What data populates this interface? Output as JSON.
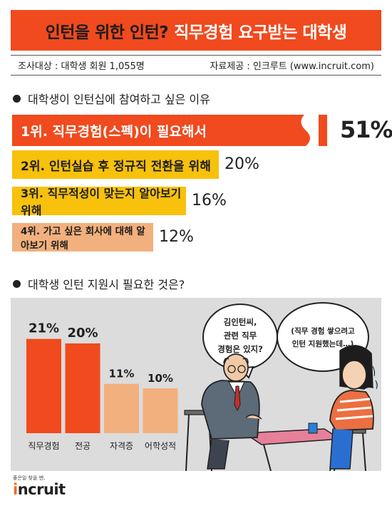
{
  "header": {
    "title_part1": "인턴을 위한 인턴?",
    "title_part2": "직무경험 요구받는 대학생",
    "survey_target": "조사대상 : 대학생 회원 1,055명",
    "source": "자료제공 : 인크루트 (www.incruit.com)"
  },
  "section1": {
    "heading": "대학생이 인턴십에 참여하고 싶은 이유"
  },
  "section2": {
    "heading": "대학생 인턴 지원시 필요한 것은?"
  },
  "chart_data": [
    {
      "type": "bar",
      "orientation": "horizontal",
      "categories": [
        "1위. 직무경험(스펙)이 필요해서",
        "2위. 인턴실습 후 정규직 전환을 위해",
        "3위. 직무적성이 맞는지 알아보기 위해",
        "4위. 가고 싶은 회사에 대해 알아보기 위해"
      ],
      "values": [
        51,
        20,
        16,
        12
      ],
      "value_labels": [
        "51%",
        "20%",
        "16%",
        "12%"
      ],
      "colors": [
        "#f04a1e",
        "#f7c10c",
        "#f7c10c",
        "#f2b07e"
      ],
      "axis_break_on_first_bar": true
    },
    {
      "type": "bar",
      "orientation": "vertical",
      "categories": [
        "직무경험",
        "전공",
        "자격증",
        "어학성적"
      ],
      "values": [
        21,
        20,
        11,
        10
      ],
      "value_labels": [
        "21%",
        "20%",
        "11%",
        "10%"
      ],
      "colors": [
        "#f04a1e",
        "#f04a1e",
        "#f2b07e",
        "#f2b07e"
      ]
    }
  ],
  "illustration": {
    "bubble1": [
      "김인턴씨,",
      "관련 직무",
      "경험은 있지?"
    ],
    "bubble2": [
      "(직무 경험 쌓으려고",
      "인턴 지원했는데…)"
    ]
  },
  "footer": {
    "logo_tagline": "좋은일 찾을 땐,",
    "logo_prefix": "i",
    "logo_text": "ncruit"
  }
}
